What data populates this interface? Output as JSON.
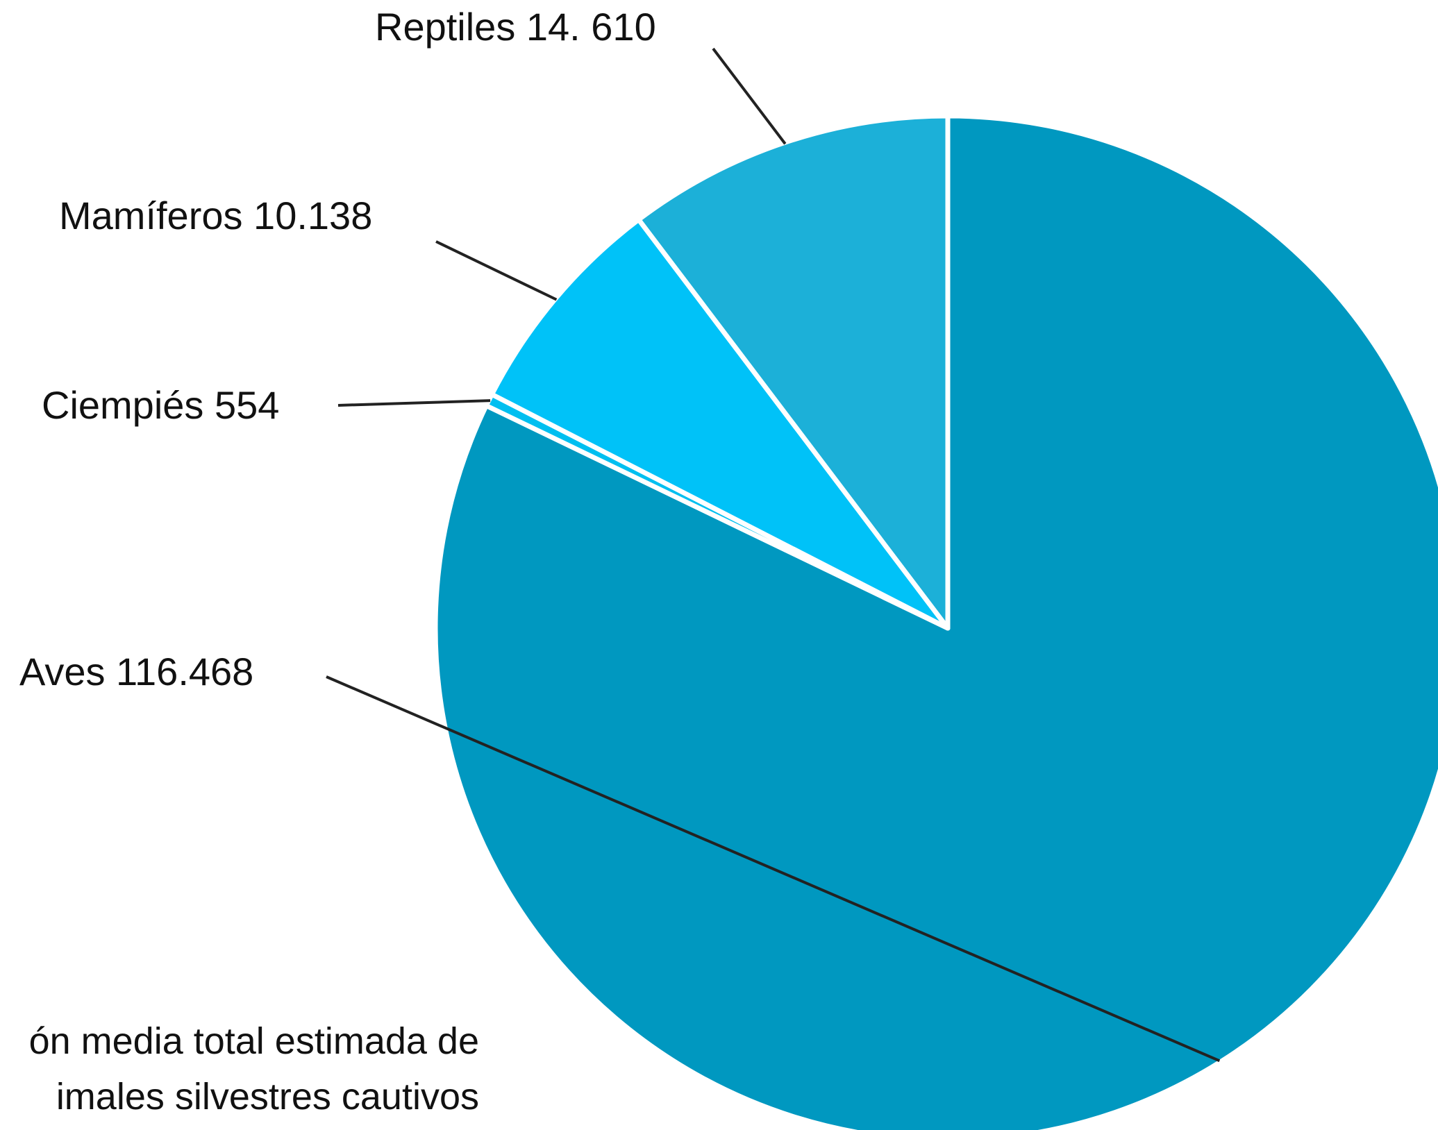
{
  "chart_data": {
    "type": "pie",
    "slices": [
      {
        "label": "Aves 116.468",
        "name": "Aves",
        "value": 116468,
        "color": "#0098c0"
      },
      {
        "label": "Ciempiés 554",
        "name": "Ciempiés",
        "value": 554,
        "color": "#00bff0"
      },
      {
        "label": "Mamíferos 10.138",
        "name": "Mamíferos",
        "value": 10138,
        "color": "#00c2f8"
      },
      {
        "label": "Reptiles 14. 610",
        "name": "Reptiles",
        "value": 14610,
        "color": "#1cb0d8"
      }
    ],
    "separator_color": "#ffffff",
    "leader_color": "#222222"
  },
  "caption": {
    "line1": "ón media total estimada de",
    "line2": "imales silvestres cautivos"
  }
}
